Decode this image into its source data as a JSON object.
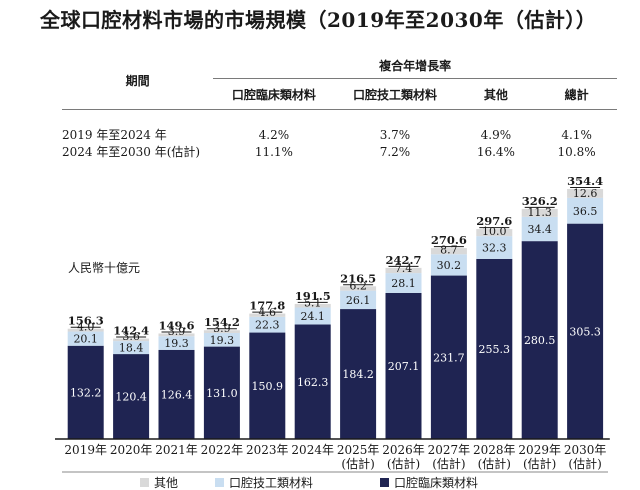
{
  "title": "全球口腔材料市場的市場規模（2019年至2030年（估計））",
  "cagr_table": {
    "group_header": "複合年增長率",
    "period_header": "期間",
    "columns": [
      "口腔臨床類材料",
      "口腔技工類材料",
      "其他",
      "總計"
    ],
    "rows": [
      {
        "period": "2019 年至2024 年",
        "values": [
          "4.2%",
          "3.7%",
          "4.9%",
          "4.1%"
        ]
      },
      {
        "period": "2024 年至2030 年(估計)",
        "values": [
          "11.1%",
          "7.2%",
          "16.4%",
          "10.8%"
        ]
      }
    ]
  },
  "chart_data": {
    "type": "bar",
    "stacked": true,
    "ylabel": "人民幣十億元",
    "categories": [
      [
        "2019年"
      ],
      [
        "2020年"
      ],
      [
        "2021年"
      ],
      [
        "2022年"
      ],
      [
        "2023年"
      ],
      [
        "2024年"
      ],
      [
        "2025年",
        "(估計)"
      ],
      [
        "2026年",
        "(估計)"
      ],
      [
        "2027年",
        "(估計)"
      ],
      [
        "2028年",
        "(估計)"
      ],
      [
        "2029年",
        "(估計)"
      ],
      [
        "2030年",
        "(估計)"
      ]
    ],
    "series": [
      {
        "name": "口腔臨床類材料",
        "color": "#1f2452",
        "values": [
          132.2,
          120.4,
          126.4,
          131.0,
          150.9,
          162.3,
          184.2,
          207.1,
          231.7,
          255.3,
          280.5,
          305.3
        ]
      },
      {
        "name": "口腔技工類材料",
        "color": "#c9def1",
        "values": [
          20.1,
          18.4,
          19.3,
          19.3,
          22.3,
          24.1,
          26.1,
          28.1,
          30.2,
          32.3,
          34.4,
          36.5
        ]
      },
      {
        "name": "其他",
        "color": "#d9d9d9",
        "values": [
          4.0,
          3.6,
          3.9,
          3.9,
          4.6,
          5.1,
          6.2,
          7.4,
          8.7,
          10.0,
          11.3,
          12.6
        ]
      }
    ],
    "totals": [
      156.3,
      142.4,
      149.6,
      154.2,
      177.8,
      191.5,
      216.5,
      242.7,
      270.6,
      297.6,
      326.2,
      354.4
    ],
    "legend_order": [
      "其他",
      "口腔技工類材料",
      "口腔臨床類材料"
    ],
    "legend_position": "bottom",
    "ylim": [
      0,
      354.4
    ],
    "grid": false
  }
}
